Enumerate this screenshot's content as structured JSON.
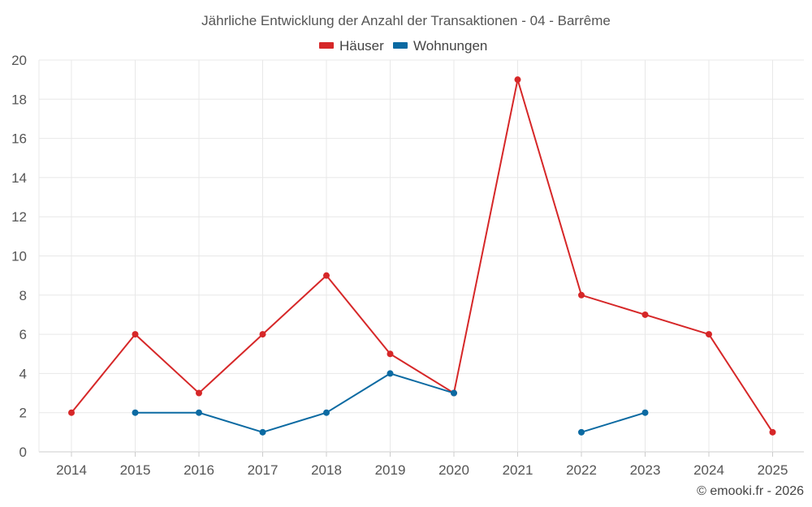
{
  "chart_data": {
    "type": "line",
    "title": "Jährliche Entwicklung der Anzahl der Transaktionen - 04 - Barrême",
    "xlabel": "",
    "ylabel": "",
    "categories": [
      "2014",
      "2015",
      "2016",
      "2017",
      "2018",
      "2019",
      "2020",
      "2021",
      "2022",
      "2023",
      "2024",
      "2025"
    ],
    "ylim": [
      0,
      20
    ],
    "yticks": [
      "0",
      "2",
      "4",
      "6",
      "8",
      "10",
      "12",
      "14",
      "16",
      "18",
      "20"
    ],
    "grid": true,
    "legend_position": "top-center",
    "series": [
      {
        "name": "Häuser",
        "color": "#d62728",
        "values": [
          2,
          6,
          3,
          6,
          9,
          5,
          3,
          19,
          8,
          7,
          6,
          1
        ]
      },
      {
        "name": "Wohnungen",
        "color": "#0b6aa2",
        "values": [
          null,
          2,
          2,
          1,
          2,
          4,
          3,
          null,
          1,
          2,
          null,
          null
        ]
      }
    ]
  },
  "credit": "© emooki.fr - 2026"
}
